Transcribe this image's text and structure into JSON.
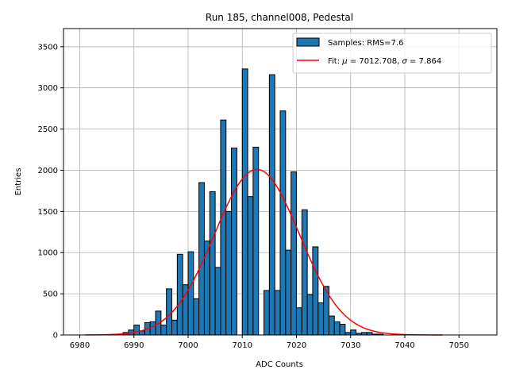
{
  "chart_data": {
    "type": "bar",
    "title": "Run 185, channel008, Pedestal",
    "xlabel": "ADC Counts",
    "ylabel": "Entries",
    "xlim": [
      6977,
      7057
    ],
    "ylim": [
      0,
      3720
    ],
    "xticks": [
      6980,
      6990,
      7000,
      7010,
      7020,
      7030,
      7040,
      7050
    ],
    "yticks": [
      0,
      500,
      1000,
      1500,
      2000,
      2500,
      3000,
      3500
    ],
    "grid": true,
    "legend_position": "top-right",
    "colors": {
      "bars": "#1f77b4",
      "bar_edge": "#000000",
      "fit": "#ff0000",
      "grid": "#b0b0b0"
    },
    "series": [
      {
        "name": "Samples: RMS=7.6",
        "kind": "histogram",
        "bins": [
          6988,
          6989,
          6990,
          6991,
          6992,
          6993,
          6994,
          6995,
          6996,
          6997,
          6998,
          6999,
          7000,
          7001,
          7002,
          7003,
          7004,
          7005,
          7006,
          7007,
          7008,
          7009,
          7010,
          7011,
          7012,
          7013,
          7014,
          7015,
          7016,
          7017,
          7018,
          7019,
          7020,
          7021,
          7022,
          7023,
          7024,
          7025,
          7026,
          7027,
          7028,
          7029,
          7030,
          7031,
          7032,
          7033,
          7034,
          7035,
          7036
        ],
        "bin_width": 1,
        "values": [
          30,
          60,
          120,
          50,
          150,
          160,
          290,
          120,
          560,
          180,
          980,
          610,
          1010,
          440,
          1850,
          1140,
          1740,
          820,
          2610,
          1500,
          2270,
          0,
          3230,
          1680,
          2280,
          0,
          540,
          3160,
          540,
          2720,
          1030,
          1980,
          330,
          1520,
          490,
          1070,
          390,
          590,
          230,
          160,
          130,
          30,
          60,
          20,
          30,
          30,
          10,
          10,
          0
        ]
      },
      {
        "name": "Fit: μ = 7012.708, σ = 7.864",
        "kind": "gaussian_fit",
        "mu": 7012.708,
        "sigma": 7.864,
        "amplitude": 2010,
        "x_range": [
          6981,
          7047
        ]
      }
    ],
    "legend": {
      "samples_label": "Samples: RMS=7.6",
      "fit_prefix": "Fit: ",
      "fit_mu_symbol": "μ",
      "fit_mu_value": " = 7012.708, ",
      "fit_sigma_symbol": "σ",
      "fit_sigma_value": " = 7.864"
    }
  }
}
